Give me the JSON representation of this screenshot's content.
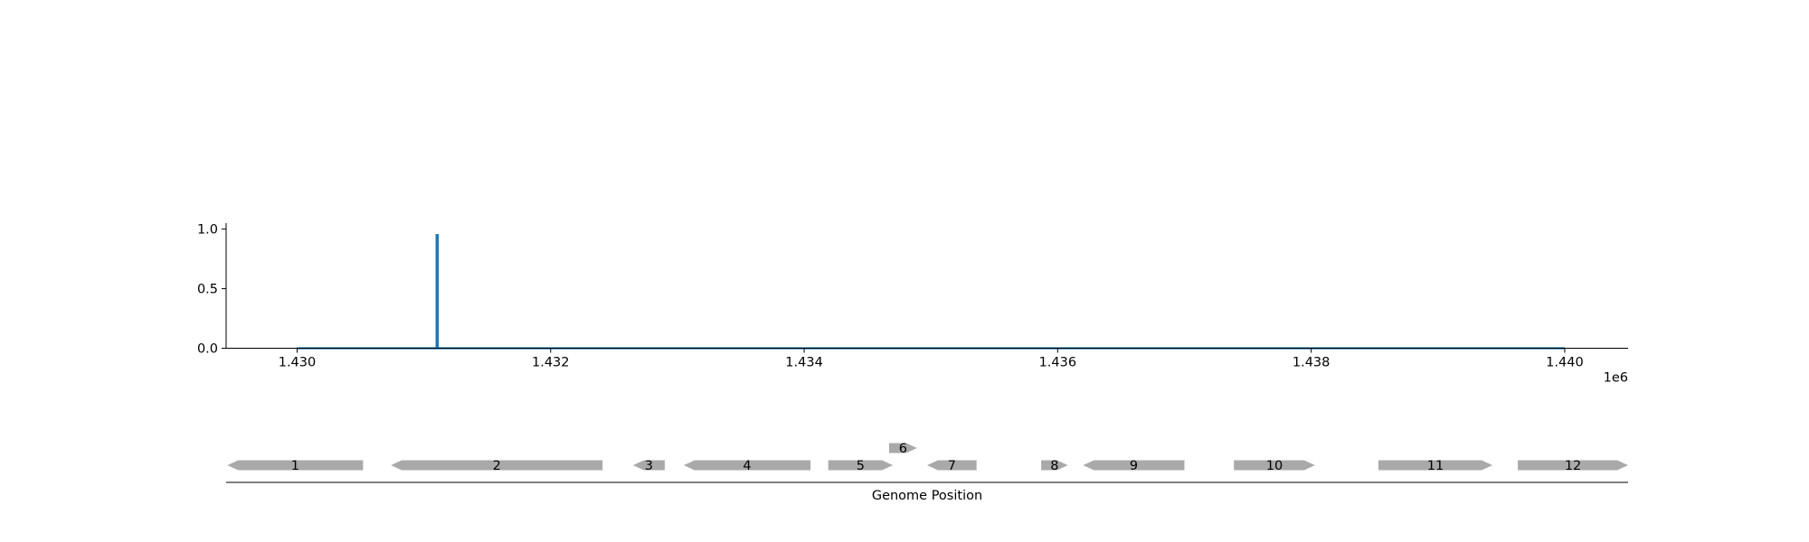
{
  "chart_data": [
    {
      "type": "line",
      "title": "",
      "xlabel": "",
      "ylabel": "",
      "x_offset_label": "1e6",
      "xlim": [
        1.42944,
        1.4405
      ],
      "ylim": [
        0.0,
        1.05
      ],
      "x_ticks": [
        1.43,
        1.432,
        1.434,
        1.436,
        1.438,
        1.44
      ],
      "x_tick_labels": [
        "1.430",
        "1.432",
        "1.434",
        "1.436",
        "1.438",
        "1.440"
      ],
      "y_ticks": [
        0.0,
        0.5,
        1.0
      ],
      "y_tick_labels": [
        "0.0",
        "0.5",
        "1.0"
      ],
      "grid": false,
      "series": [
        {
          "color": "#1f77b4",
          "x": [
            1.43,
            1.4311,
            1.4311,
            1.43111,
            1.43111,
            1.44
          ],
          "y": [
            0.0,
            0.0,
            0.95,
            0.95,
            0.0,
            0.0
          ]
        }
      ]
    },
    {
      "type": "gene-track",
      "xlabel": "Genome Position",
      "xlim": [
        1.42944,
        1.4405
      ],
      "feature_color": "#a9a9a9",
      "features": [
        {
          "label": "1",
          "start": 1.42945,
          "end": 1.43052,
          "strand": -1,
          "row": 0
        },
        {
          "label": "2",
          "start": 1.43074,
          "end": 1.43241,
          "strand": -1,
          "row": 0
        },
        {
          "label": "3",
          "start": 1.43265,
          "end": 1.4329,
          "strand": -1,
          "row": 0
        },
        {
          "label": "4",
          "start": 1.43305,
          "end": 1.43405,
          "strand": -1,
          "row": 0
        },
        {
          "label": "5",
          "start": 1.43419,
          "end": 1.4347,
          "strand": 1,
          "row": 0
        },
        {
          "label": "6",
          "start": 1.43467,
          "end": 1.43489,
          "strand": 1,
          "row": 1
        },
        {
          "label": "7",
          "start": 1.43497,
          "end": 1.43536,
          "strand": -1,
          "row": 0
        },
        {
          "label": "8",
          "start": 1.43587,
          "end": 1.43608,
          "strand": 1,
          "row": 0
        },
        {
          "label": "9",
          "start": 1.4362,
          "end": 1.437,
          "strand": -1,
          "row": 0
        },
        {
          "label": "10",
          "start": 1.43739,
          "end": 1.43803,
          "strand": 1,
          "row": 0
        },
        {
          "label": "11",
          "start": 1.43853,
          "end": 1.43943,
          "strand": 1,
          "row": 0
        },
        {
          "label": "12",
          "start": 1.43963,
          "end": 1.4405,
          "strand": 1,
          "row": 0
        }
      ]
    }
  ]
}
